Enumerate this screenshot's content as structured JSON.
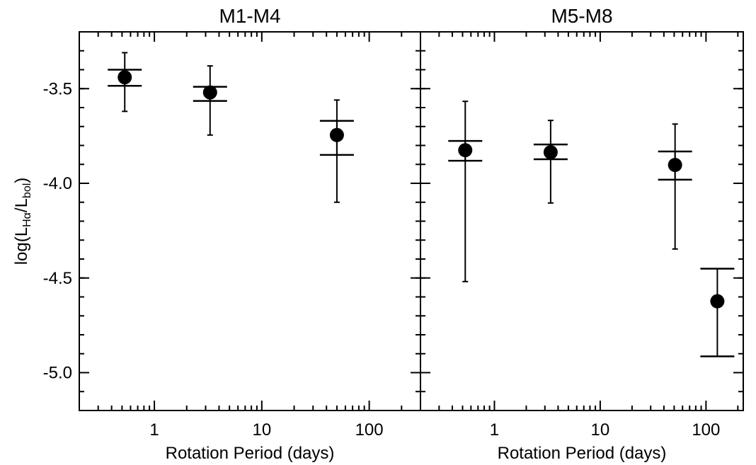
{
  "chart_data": [
    {
      "type": "scatter",
      "title": "M1-M4",
      "x_label": "Rotation Period (days)",
      "y_label_parts": [
        "log(L",
        "Hα",
        "/L",
        "bol",
        ")"
      ],
      "xscale": "log",
      "xlim": [
        0.2,
        300
      ],
      "xticks": [
        1,
        10,
        100
      ],
      "ylim": [
        -5.2,
        -3.2
      ],
      "yticks": [
        {
          "value": -5.0,
          "label": "-5.0"
        },
        -4.5,
        {
          "value": -4.0,
          "label": "-4.0"
        },
        -3.5
      ],
      "color": "#000000",
      "x": [
        0.53,
        3.3,
        50
      ],
      "values": [
        -3.44,
        -3.52,
        -3.745
      ],
      "range_low": [
        -3.62,
        -3.745,
        -4.1
      ],
      "range_high": [
        -3.31,
        -3.38,
        -3.56
      ],
      "mean_low": [
        -3.485,
        -3.565,
        -3.85
      ],
      "mean_high": [
        -3.4,
        -3.49,
        -3.67
      ]
    },
    {
      "type": "scatter",
      "title": "M5-M8",
      "x_label": "Rotation Period (days)",
      "xscale": "log",
      "xlim": [
        0.2,
        225
      ],
      "xticks": [
        1,
        10,
        100
      ],
      "ylim": [
        -5.2,
        -3.2
      ],
      "yticks": [
        {
          "value": -5.0,
          "label": "-5.0"
        },
        -4.5,
        {
          "value": -4.0,
          "label": "-4.0"
        },
        -3.5
      ],
      "color": "#000000",
      "x": [
        0.53,
        3.4,
        51,
        128
      ],
      "values": [
        -3.825,
        -3.836,
        -3.903,
        -4.623
      ],
      "range_low": [
        -4.519,
        -4.104,
        -4.347,
        null
      ],
      "range_high": [
        -3.567,
        -3.668,
        -3.687,
        null
      ],
      "mean_low": [
        -3.881,
        -3.873,
        -3.981,
        -4.914
      ],
      "mean_high": [
        -3.776,
        -3.795,
        -3.832,
        -4.451
      ]
    }
  ]
}
